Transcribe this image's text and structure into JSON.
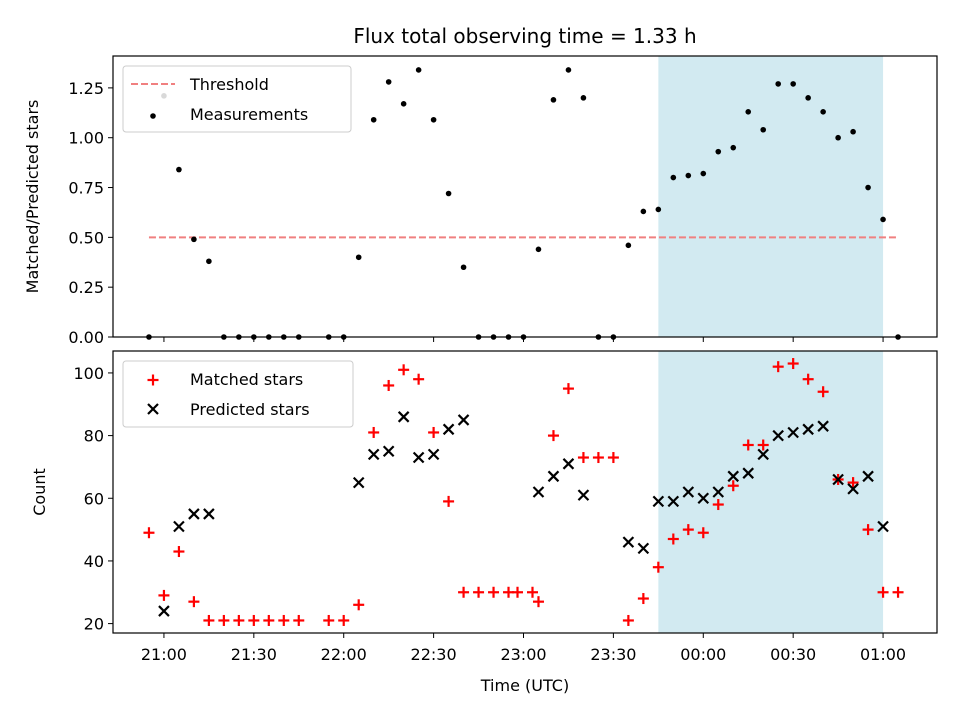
{
  "chart_data": [
    {
      "type": "scatter",
      "title": "Flux total observing time = 1.33 h",
      "xlabel": "",
      "ylabel": "Matched/Predicted stars",
      "ylim": [
        0,
        1.41
      ],
      "yticks": [
        "0.00",
        "0.25",
        "0.50",
        "0.75",
        "1.00",
        "1.25"
      ],
      "xlim": [
        "20:43",
        "01:18"
      ],
      "shaded_region": [
        "23:45",
        "01:00"
      ],
      "shaded_color": "#add8e6",
      "legend_position": "top-left",
      "threshold": {
        "name": "Threshold",
        "value": 0.5,
        "x_start": "20:55",
        "x_end": "01:05",
        "color": "#f08080"
      },
      "series": [
        {
          "name": "Measurements",
          "marker": "dot",
          "color": "#000000",
          "x": [
            "20:55",
            "21:00",
            "21:05",
            "21:10",
            "21:15",
            "21:20",
            "21:25",
            "21:30",
            "21:35",
            "21:40",
            "21:45",
            "22:00",
            "22:05",
            "21:55",
            "22:10",
            "22:15",
            "22:20",
            "22:25",
            "22:30",
            "22:35",
            "22:40",
            "22:45",
            "22:50",
            "22:55",
            "23:00",
            "23:05",
            "23:10",
            "23:15",
            "23:20",
            "23:25",
            "23:30",
            "23:35",
            "23:40",
            "23:45",
            "23:50",
            "23:55",
            "00:00",
            "00:05",
            "00:10",
            "00:15",
            "00:20",
            "00:25",
            "00:30",
            "00:35",
            "00:40",
            "00:45",
            "00:50",
            "00:55",
            "01:00",
            "01:05"
          ],
          "y": [
            0.0,
            1.21,
            0.84,
            0.49,
            0.38,
            0.0,
            0.0,
            0.0,
            0.0,
            0.0,
            0.0,
            0.0,
            0.4,
            0.0,
            1.09,
            1.28,
            1.17,
            1.34,
            1.09,
            0.72,
            0.35,
            0.0,
            0.0,
            0.0,
            0.0,
            0.44,
            1.19,
            1.34,
            1.2,
            0.0,
            0.0,
            0.46,
            0.63,
            0.64,
            0.8,
            0.81,
            0.82,
            0.93,
            0.95,
            1.13,
            1.04,
            1.27,
            1.27,
            1.2,
            1.13,
            1.0,
            1.03,
            0.75,
            0.59,
            0.0
          ]
        }
      ]
    },
    {
      "type": "scatter",
      "title": "",
      "xlabel": "Time (UTC)",
      "ylabel": "Count",
      "ylim": [
        17,
        107
      ],
      "yticks": [
        "20",
        "40",
        "60",
        "80",
        "100"
      ],
      "xlim": [
        "20:43",
        "01:18"
      ],
      "xticks": [
        "21:00",
        "21:30",
        "22:00",
        "22:30",
        "23:00",
        "23:30",
        "00:00",
        "00:30",
        "01:00"
      ],
      "shaded_region": [
        "23:45",
        "01:00"
      ],
      "shaded_color": "#add8e6",
      "legend_position": "top-left",
      "series": [
        {
          "name": "Matched stars",
          "marker": "plus",
          "color": "#ff0000",
          "x": [
            "20:55",
            "21:00",
            "21:05",
            "21:10",
            "21:15",
            "21:20",
            "21:25",
            "21:30",
            "21:35",
            "21:40",
            "21:45",
            "21:55",
            "22:00",
            "22:05",
            "22:10",
            "22:15",
            "22:20",
            "22:25",
            "22:30",
            "22:35",
            "22:40",
            "22:45",
            "22:50",
            "22:55",
            "22:58",
            "23:03",
            "23:05",
            "23:10",
            "23:15",
            "23:20",
            "23:25",
            "23:30",
            "23:35",
            "23:40",
            "23:45",
            "23:50",
            "23:55",
            "00:00",
            "00:05",
            "00:10",
            "00:15",
            "00:20",
            "00:25",
            "00:30",
            "00:35",
            "00:40",
            "00:45",
            "00:50",
            "00:55",
            "01:00",
            "01:05"
          ],
          "y": [
            49,
            29,
            43,
            27,
            21,
            21,
            21,
            21,
            21,
            21,
            21,
            21,
            21,
            26,
            81,
            96,
            101,
            98,
            81,
            59,
            30,
            30,
            30,
            30,
            30,
            30,
            27,
            80,
            95,
            73,
            73,
            73,
            21,
            28,
            38,
            47,
            50,
            49,
            58,
            64,
            77,
            77,
            102,
            103,
            98,
            94,
            66,
            65,
            50,
            30,
            30
          ]
        },
        {
          "name": "Predicted stars",
          "marker": "x",
          "color": "#000000",
          "x": [
            "21:00",
            "21:05",
            "21:10",
            "21:15",
            "22:05",
            "22:10",
            "22:15",
            "22:20",
            "22:25",
            "22:30",
            "22:35",
            "22:40",
            "23:05",
            "23:10",
            "23:15",
            "23:20",
            "23:35",
            "23:40",
            "23:45",
            "23:50",
            "23:55",
            "00:00",
            "00:05",
            "00:10",
            "00:15",
            "00:20",
            "00:25",
            "00:30",
            "00:35",
            "00:40",
            "00:45",
            "00:50",
            "00:55",
            "01:00"
          ],
          "y": [
            24,
            51,
            55,
            55,
            65,
            74,
            75,
            86,
            73,
            74,
            82,
            85,
            62,
            67,
            71,
            61,
            46,
            44,
            59,
            59,
            62,
            60,
            62,
            67,
            68,
            74,
            80,
            81,
            82,
            83,
            66,
            63,
            67,
            51
          ]
        }
      ]
    }
  ]
}
